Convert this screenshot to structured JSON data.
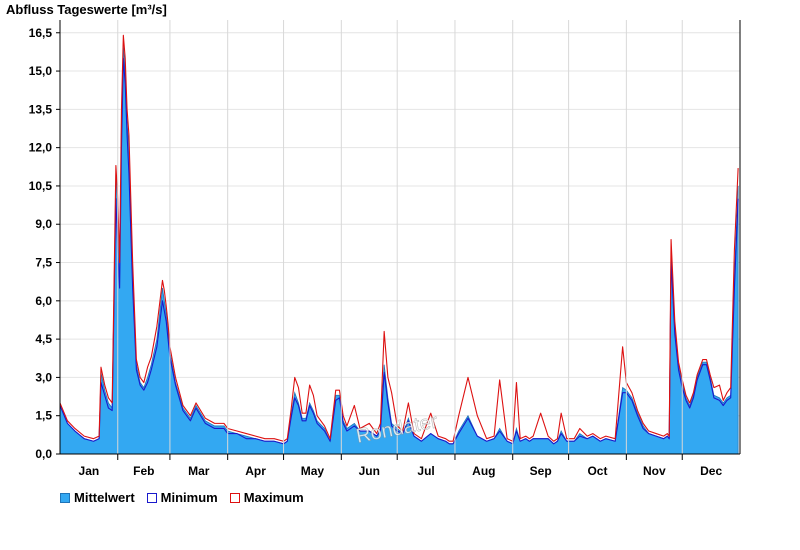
{
  "chart_data": {
    "type": "area",
    "title": "Abfluss Tageswerte [m³/s]",
    "xlabel": "",
    "ylabel": "",
    "ylim": [
      0,
      17
    ],
    "yticks": [
      "0,0",
      "1,5",
      "3,0",
      "4,5",
      "6,0",
      "7,5",
      "9,0",
      "10,5",
      "12,0",
      "13,5",
      "15,0",
      "16,5"
    ],
    "ytick_values": [
      0,
      1.5,
      3,
      4.5,
      6,
      7.5,
      9,
      10.5,
      12,
      13.5,
      15,
      16.5
    ],
    "xlim": [
      0,
      365
    ],
    "months": [
      "Jan",
      "Feb",
      "Mar",
      "Apr",
      "May",
      "Jun",
      "Jul",
      "Aug",
      "Sep",
      "Oct",
      "Nov",
      "Dec"
    ],
    "grid": true,
    "legend_position": "bottom-left",
    "watermark": "Rondater",
    "colors": {
      "mean": "#33a8f2",
      "mean_edge": "#1f74b8",
      "min": "#1a1acc",
      "max": "#dd1111"
    },
    "x": [
      0,
      4,
      8,
      13,
      18,
      21,
      22,
      24,
      26,
      28,
      30,
      31,
      32,
      33,
      34,
      35,
      36,
      37,
      39,
      41,
      43,
      45,
      47,
      49,
      52,
      55,
      56,
      57,
      58,
      59,
      62,
      66,
      70,
      73,
      78,
      83,
      88,
      90,
      95,
      100,
      105,
      110,
      115,
      120,
      122,
      124,
      126,
      128,
      130,
      132,
      134,
      136,
      138,
      142,
      145,
      148,
      150,
      152,
      154,
      158,
      161,
      166,
      170,
      172,
      174,
      176,
      178,
      181,
      184,
      187,
      190,
      194,
      199,
      203,
      207,
      209,
      211,
      214,
      219,
      224,
      229,
      233,
      236,
      240,
      243,
      245,
      247,
      250,
      252,
      254,
      258,
      262,
      265,
      267,
      269,
      272,
      276,
      279,
      283,
      286,
      290,
      293,
      298,
      302,
      304,
      307,
      310,
      313,
      316,
      320,
      324,
      326,
      327,
      328,
      330,
      332,
      334,
      336,
      338,
      340,
      342,
      345,
      347,
      349,
      351,
      354,
      356,
      358,
      360,
      362,
      364
    ],
    "series": [
      {
        "name": "Mittelwert",
        "values": [
          1.9,
          1.2,
          0.9,
          0.6,
          0.5,
          0.6,
          3.2,
          2.5,
          2.0,
          1.8,
          11.0,
          9.5,
          7.0,
          13.0,
          16.0,
          15.0,
          13.0,
          12.0,
          7.0,
          3.5,
          2.8,
          2.6,
          3.0,
          3.5,
          4.5,
          6.5,
          6.0,
          5.5,
          4.8,
          4.0,
          2.8,
          1.8,
          1.4,
          1.9,
          1.3,
          1.1,
          1.1,
          0.9,
          0.8,
          0.7,
          0.6,
          0.5,
          0.5,
          0.4,
          0.5,
          1.5,
          2.4,
          2.0,
          1.4,
          1.4,
          2.0,
          1.7,
          1.3,
          1.0,
          0.5,
          2.3,
          2.3,
          1.3,
          1.0,
          1.2,
          0.9,
          0.9,
          0.7,
          1.0,
          3.5,
          2.2,
          1.2,
          1.0,
          0.8,
          1.4,
          0.7,
          0.5,
          0.8,
          0.6,
          0.5,
          0.4,
          0.4,
          0.9,
          1.5,
          0.7,
          0.5,
          0.6,
          1.0,
          0.5,
          0.4,
          1.0,
          0.5,
          0.6,
          0.5,
          0.6,
          0.6,
          0.6,
          0.4,
          0.5,
          0.9,
          0.5,
          0.5,
          0.8,
          0.6,
          0.7,
          0.5,
          0.6,
          0.5,
          2.6,
          2.5,
          2.2,
          1.6,
          1.1,
          0.8,
          0.7,
          0.6,
          0.7,
          0.6,
          8.0,
          5.0,
          3.5,
          2.8,
          2.2,
          1.9,
          2.3,
          3.0,
          3.6,
          3.6,
          3.0,
          2.3,
          2.2,
          2.0,
          2.2,
          2.3,
          7.0,
          10.5
        ]
      },
      {
        "name": "Minimum",
        "values": [
          1.9,
          1.2,
          0.9,
          0.6,
          0.5,
          0.6,
          2.8,
          2.3,
          1.8,
          1.7,
          10.0,
          8.0,
          6.5,
          12.0,
          15.5,
          14.5,
          12.5,
          11.0,
          6.5,
          3.3,
          2.7,
          2.5,
          2.8,
          3.3,
          4.2,
          6.0,
          5.6,
          5.2,
          4.5,
          3.8,
          2.7,
          1.7,
          1.3,
          1.8,
          1.2,
          1.0,
          1.0,
          0.8,
          0.8,
          0.6,
          0.6,
          0.5,
          0.5,
          0.4,
          0.5,
          1.4,
          2.2,
          1.9,
          1.3,
          1.3,
          1.9,
          1.6,
          1.2,
          0.9,
          0.5,
          2.1,
          2.2,
          1.2,
          0.9,
          1.1,
          0.9,
          0.9,
          0.7,
          0.9,
          3.2,
          2.0,
          1.1,
          0.9,
          0.8,
          1.3,
          0.7,
          0.5,
          0.8,
          0.6,
          0.5,
          0.4,
          0.4,
          0.8,
          1.4,
          0.7,
          0.5,
          0.6,
          0.9,
          0.5,
          0.4,
          0.9,
          0.5,
          0.6,
          0.5,
          0.6,
          0.6,
          0.6,
          0.4,
          0.5,
          0.8,
          0.5,
          0.5,
          0.7,
          0.6,
          0.7,
          0.5,
          0.6,
          0.5,
          2.4,
          2.4,
          2.1,
          1.5,
          1.0,
          0.8,
          0.7,
          0.6,
          0.7,
          0.6,
          7.6,
          4.7,
          3.3,
          2.6,
          2.1,
          1.8,
          2.2,
          2.9,
          3.5,
          3.5,
          2.9,
          2.2,
          2.1,
          1.9,
          2.1,
          2.2,
          6.5,
          10.0
        ]
      },
      {
        "name": "Maximum",
        "values": [
          2.0,
          1.3,
          1.0,
          0.7,
          0.6,
          0.7,
          3.4,
          2.7,
          2.2,
          2.0,
          11.3,
          10.0,
          7.5,
          13.5,
          16.4,
          15.5,
          13.5,
          12.5,
          7.5,
          3.7,
          3.0,
          2.8,
          3.4,
          3.8,
          5.0,
          6.8,
          6.4,
          5.8,
          5.1,
          4.2,
          3.0,
          1.9,
          1.5,
          2.0,
          1.4,
          1.2,
          1.2,
          1.0,
          0.9,
          0.8,
          0.7,
          0.6,
          0.6,
          0.5,
          0.6,
          1.7,
          3.0,
          2.6,
          1.6,
          1.6,
          2.7,
          2.3,
          1.5,
          1.1,
          0.6,
          2.5,
          2.5,
          1.5,
          1.1,
          1.9,
          1.0,
          1.2,
          0.8,
          1.2,
          4.8,
          3.0,
          2.4,
          1.1,
          0.9,
          2.0,
          0.8,
          0.6,
          1.6,
          0.7,
          0.6,
          0.5,
          0.5,
          1.5,
          3.0,
          1.5,
          0.6,
          0.7,
          2.9,
          0.6,
          0.5,
          2.8,
          0.6,
          0.7,
          0.6,
          0.7,
          1.6,
          0.7,
          0.5,
          0.6,
          1.6,
          0.6,
          0.6,
          1.0,
          0.7,
          0.8,
          0.6,
          0.7,
          0.6,
          4.2,
          2.8,
          2.4,
          1.7,
          1.2,
          0.9,
          0.8,
          0.7,
          0.8,
          0.7,
          8.4,
          5.2,
          3.6,
          2.9,
          2.3,
          2.0,
          2.4,
          3.1,
          3.7,
          3.7,
          3.1,
          2.6,
          2.7,
          2.1,
          2.4,
          2.6,
          8.0,
          11.2
        ]
      }
    ]
  }
}
